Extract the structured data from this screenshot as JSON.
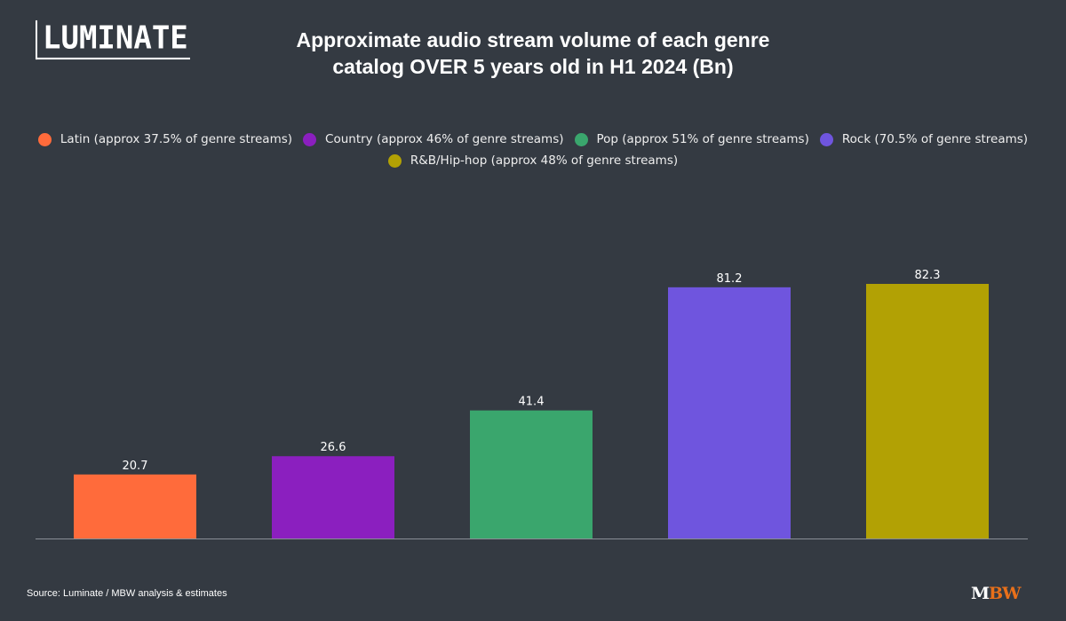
{
  "brand": {
    "logo_text": "LUMINATE",
    "mbw_m": "M",
    "mbw_bw": "BW"
  },
  "source": "Source: Luminate / MBW analysis & estimates",
  "chart_data": {
    "type": "bar",
    "title": "Approximate audio stream volume of each genre catalog OVER 5 years old in H1 2024 (Bn)",
    "title_lines": [
      "Approximate audio stream volume of each genre",
      "catalog OVER 5 years old in H1 2024 (Bn)"
    ],
    "categories": [
      "Latin (approx 37.5% of genre streams)",
      "Country (approx 46% of genre streams)",
      "Pop (approx 51% of genre streams)",
      "Rock (70.5% of genre streams)",
      "R&B/Hip-hop (approx 48% of genre streams)"
    ],
    "values": [
      20.7,
      26.6,
      41.4,
      81.2,
      82.3
    ],
    "value_labels": [
      "20.7",
      "26.6",
      "41.4",
      "81.2",
      "82.3"
    ],
    "colors": [
      "#ff6b3b",
      "#8b1fbf",
      "#3aa66d",
      "#6f55de",
      "#b2a104"
    ],
    "ylim": [
      0,
      82.3
    ],
    "xlabel": "",
    "ylabel": "",
    "grid": false,
    "legend_position": "top"
  }
}
